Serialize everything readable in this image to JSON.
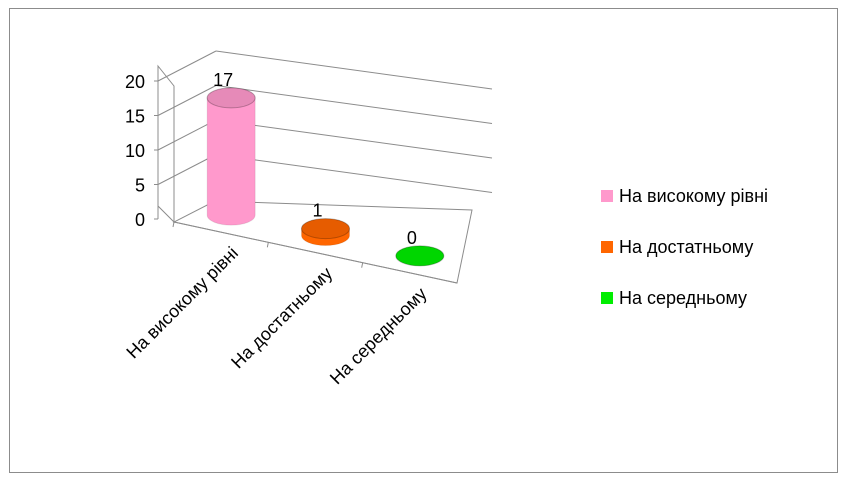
{
  "chart_data": {
    "type": "bar",
    "style": "3d-cylinder",
    "categories": [
      "На високому рівні",
      "На достатньому",
      "На середньому"
    ],
    "series": [
      {
        "values": [
          17,
          1,
          0
        ]
      }
    ],
    "data_labels": [
      "17",
      "1",
      "0"
    ],
    "colors": [
      "#ff99cc",
      "#ff6600",
      "#00ee00"
    ],
    "ylim": [
      0,
      20
    ],
    "yticks": [
      "0",
      "5",
      "10",
      "15",
      "20"
    ],
    "grid": true,
    "legend_position": "right",
    "legend": [
      {
        "label": "На високому рівні",
        "color": "#ff99cc"
      },
      {
        "label": "На достатньому",
        "color": "#ff6600"
      },
      {
        "label": "На середньому",
        "color": "#00ee00"
      }
    ]
  }
}
